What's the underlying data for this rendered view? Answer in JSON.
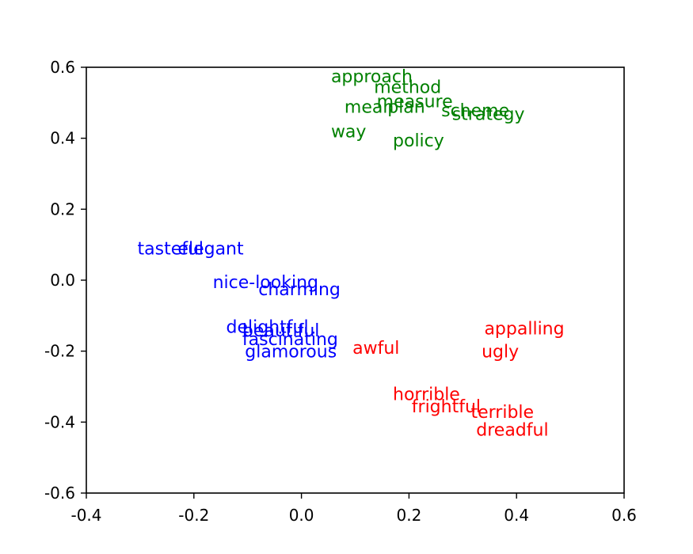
{
  "chart_data": {
    "type": "scatter",
    "title": "",
    "xlabel": "",
    "ylabel": "",
    "xlim": [
      -0.4,
      0.6
    ],
    "ylim": [
      -0.6,
      0.6
    ],
    "x_ticks": [
      -0.4,
      -0.2,
      0.0,
      0.2,
      0.4,
      0.6
    ],
    "y_ticks": [
      -0.6,
      -0.4,
      -0.2,
      0.0,
      0.2,
      0.4,
      0.6
    ],
    "x_tick_labels": [
      "-0.4",
      "-0.2",
      "0.0",
      "0.2",
      "0.4",
      "0.6"
    ],
    "y_tick_labels": [
      "-0.6",
      "-0.4",
      "-0.2",
      "0.0",
      "0.2",
      "0.4",
      "0.6"
    ],
    "grid": false,
    "legend": false,
    "series": [
      {
        "color": "#008000",
        "points": [
          {
            "label": "approach",
            "x": 0.055,
            "y": 0.575
          },
          {
            "label": "method",
            "x": 0.135,
            "y": 0.545
          },
          {
            "label": "measure",
            "x": 0.14,
            "y": 0.505
          },
          {
            "label": "mean",
            "x": 0.08,
            "y": 0.49
          },
          {
            "label": "plan",
            "x": 0.16,
            "y": 0.49
          },
          {
            "label": "scheme",
            "x": 0.26,
            "y": 0.48
          },
          {
            "label": "strategy",
            "x": 0.28,
            "y": 0.47
          },
          {
            "label": "way",
            "x": 0.055,
            "y": 0.42
          },
          {
            "label": "policy",
            "x": 0.17,
            "y": 0.395
          }
        ]
      },
      {
        "color": "#0000ff",
        "points": [
          {
            "label": "tasteful",
            "x": -0.305,
            "y": 0.09
          },
          {
            "label": "elegant",
            "x": -0.23,
            "y": 0.09
          },
          {
            "label": "nice-looking",
            "x": -0.165,
            "y": -0.005
          },
          {
            "label": "charming",
            "x": -0.08,
            "y": -0.025
          },
          {
            "label": "delightful",
            "x": -0.14,
            "y": -0.13
          },
          {
            "label": "beautiful",
            "x": -0.11,
            "y": -0.14
          },
          {
            "label": "fascinating",
            "x": -0.11,
            "y": -0.165
          },
          {
            "label": "glamorous",
            "x": -0.105,
            "y": -0.2
          }
        ]
      },
      {
        "color": "#ff0000",
        "points": [
          {
            "label": "awful",
            "x": 0.095,
            "y": -0.19
          },
          {
            "label": "appalling",
            "x": 0.34,
            "y": -0.135
          },
          {
            "label": "ugly",
            "x": 0.335,
            "y": -0.2
          },
          {
            "label": "horrible",
            "x": 0.17,
            "y": -0.32
          },
          {
            "label": "frightful",
            "x": 0.205,
            "y": -0.355
          },
          {
            "label": "terrible",
            "x": 0.315,
            "y": -0.37
          },
          {
            "label": "dreadful",
            "x": 0.325,
            "y": -0.42
          }
        ]
      }
    ]
  }
}
